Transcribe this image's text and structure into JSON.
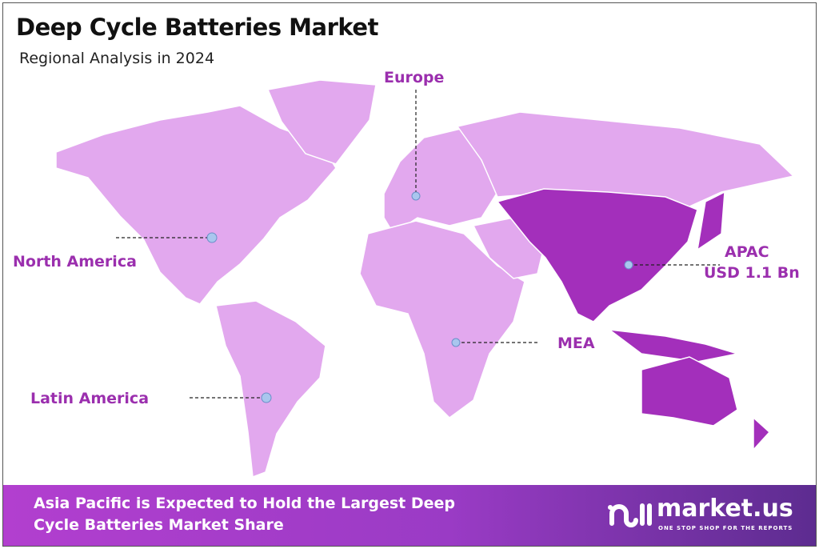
{
  "header": {
    "title": "Deep Cycle Batteries Market",
    "subtitle": "Regional Analysis in 2024"
  },
  "regions": [
    {
      "id": "europe",
      "label": "Europe"
    },
    {
      "id": "north-america",
      "label": "North America"
    },
    {
      "id": "apac",
      "label": "APAC",
      "value": "USD 1.1 Bn",
      "highlighted": true
    },
    {
      "id": "mea",
      "label": "MEA"
    },
    {
      "id": "latin-america",
      "label": "Latin America"
    }
  ],
  "colors": {
    "land": "#e2a8ee",
    "highlight": "#a32fbb",
    "label": "#9b2fae",
    "marker": "#a9c6ee"
  },
  "banner": {
    "line1": "Asia Pacific is Expected to Hold the Largest Deep",
    "line2": "Cycle Batteries Market Share"
  },
  "logo": {
    "name": "market.us",
    "tagline": "ONE STOP SHOP FOR THE REPORTS"
  }
}
